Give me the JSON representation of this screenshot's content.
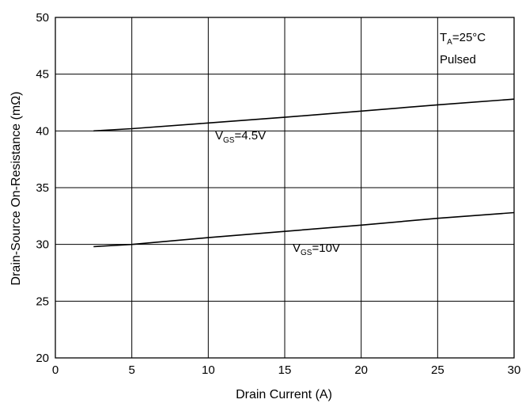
{
  "chart_data": {
    "type": "line",
    "xlabel": "Drain Current (A)",
    "ylabel": "Drain-Source On-Resistance (mΩ)",
    "xlim": [
      0,
      30
    ],
    "ylim": [
      20,
      50
    ],
    "x_ticks": [
      "0",
      "5",
      "10",
      "15",
      "20",
      "25",
      "30"
    ],
    "y_ticks": [
      "20",
      "25",
      "30",
      "35",
      "40",
      "45",
      "50"
    ],
    "grid": true,
    "series": [
      {
        "name": "VGS=4.5V",
        "label_main": "V",
        "label_sub": "GS",
        "label_tail": "=4.5V",
        "x": [
          2.5,
          5,
          10,
          15,
          20,
          25,
          30
        ],
        "y": [
          40.0,
          40.2,
          40.7,
          41.2,
          41.75,
          42.3,
          42.8
        ]
      },
      {
        "name": "VGS=10V",
        "label_main": "V",
        "label_sub": "GS",
        "label_tail": "=10V",
        "x": [
          2.5,
          5,
          10,
          15,
          20,
          25,
          30
        ],
        "y": [
          29.8,
          30.0,
          30.6,
          31.15,
          31.7,
          32.3,
          32.8
        ]
      }
    ],
    "annotation": {
      "line1_main": "T",
      "line1_sub": "A",
      "line1_tail": "=25°C",
      "line2": "Pulsed"
    }
  }
}
